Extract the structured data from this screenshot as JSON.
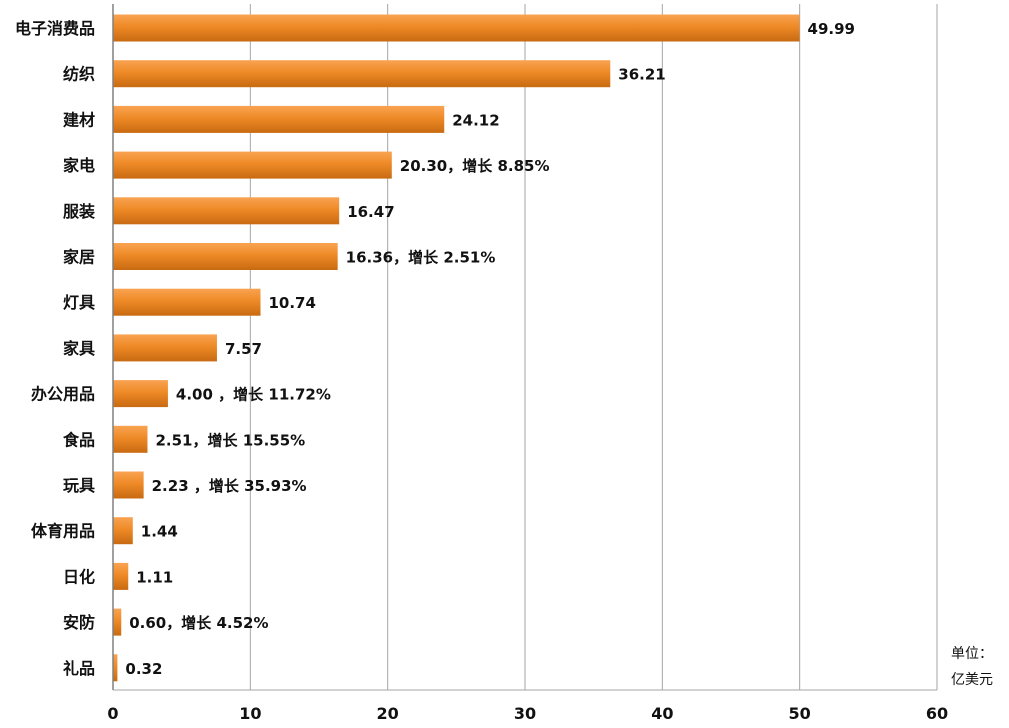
{
  "chart_data": {
    "type": "bar",
    "orientation": "horizontal",
    "categories": [
      "电子消费品",
      "纺织",
      "建材",
      "家电",
      "服装",
      "家居",
      "灯具",
      "家具",
      "办公用品",
      "食品",
      "玩具",
      "体育用品",
      "日化",
      "安防",
      "礼品"
    ],
    "values": [
      49.99,
      36.21,
      24.12,
      20.3,
      16.47,
      16.36,
      10.74,
      7.57,
      4.0,
      2.51,
      2.23,
      1.44,
      1.11,
      0.6,
      0.32
    ],
    "data_labels": [
      "49.99",
      "36.21",
      "24.12",
      "20.30，增长 8.85%",
      "16.47",
      "16.36，增长 2.51%",
      "10.74",
      "7.57",
      "4.00 ，增长 11.72%",
      "2.51，增长 15.55%",
      "2.23 ，增长 35.93%",
      "1.44",
      "1.11",
      "0.60，增长 4.52%",
      "0.32"
    ],
    "xlim": [
      0,
      60
    ],
    "xticks": [
      0,
      10,
      20,
      30,
      40,
      50,
      60
    ],
    "xtick_labels": [
      "0",
      "10",
      "20",
      "30",
      "40",
      "50",
      "60"
    ],
    "unit_lines": [
      "单位：",
      "亿美元"
    ],
    "grid": "vertical",
    "legend": "none",
    "colors": {
      "bar_light": "#f9a352",
      "bar_main": "#ee8a26",
      "bar_dark": "#c86a12",
      "grid": "#a6a6a6",
      "axis": "#808080"
    }
  }
}
